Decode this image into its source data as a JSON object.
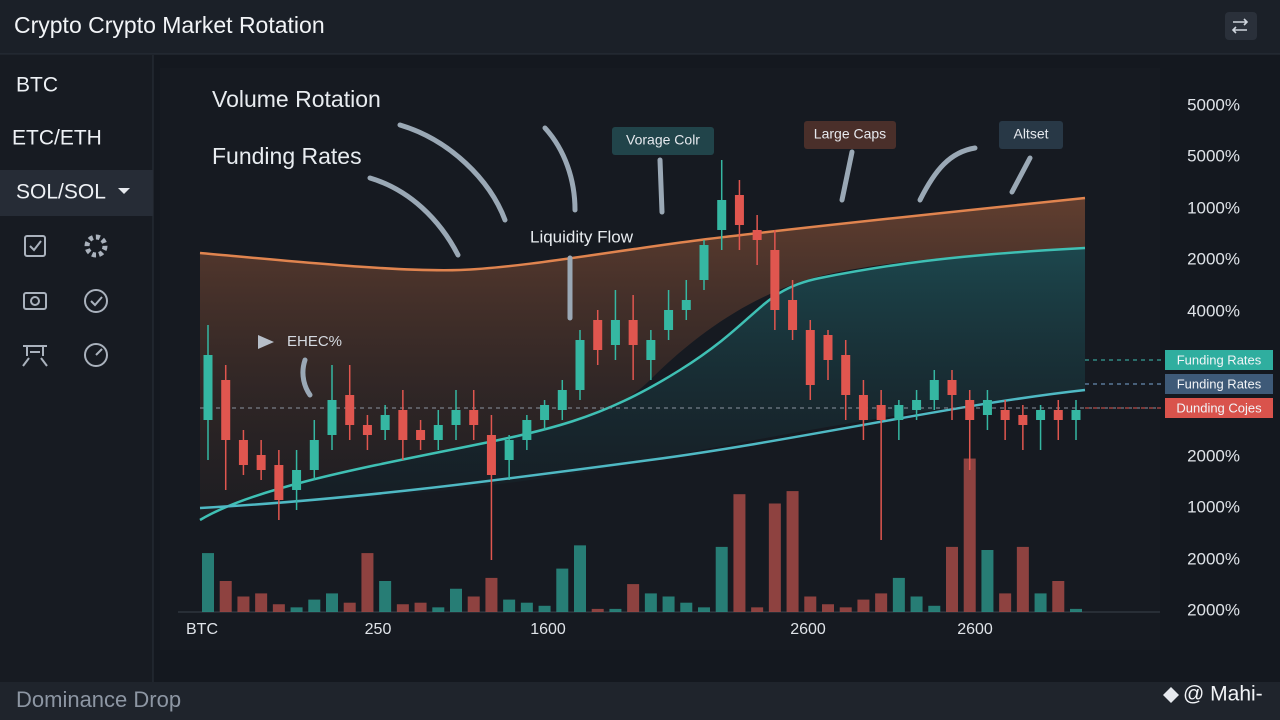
{
  "header": {
    "title": "Crypto Crypto Market Rotation"
  },
  "sidebar": {
    "items": [
      "BTC",
      "ETC/ETH",
      "SOL/SOL"
    ]
  },
  "chart": {
    "annotations": [
      "Volume Rotation",
      "Funding Rates",
      "Liquidity Flow",
      "EHEC%"
    ],
    "callouts": [
      "Vorage Colr",
      "Large Caps",
      "Altset"
    ],
    "legend": [
      "Funding Rates",
      "Funding Rates",
      "Dunding Cojes"
    ],
    "y_labels": [
      "5000%",
      "5000%",
      "1000%",
      "2000%",
      "4000%",
      "2000%",
      "1000%",
      "2000%",
      "2000%"
    ],
    "x_labels": [
      "BTC",
      "250",
      "1600",
      "2600",
      "2600"
    ],
    "candles": [
      [
        44,
        63,
        36,
        57
      ],
      [
        52,
        55,
        30,
        40
      ],
      [
        40,
        42,
        33,
        35
      ],
      [
        37,
        40,
        32,
        34
      ],
      [
        35,
        38,
        24,
        28
      ],
      [
        30,
        38,
        26,
        34
      ],
      [
        34,
        44,
        32,
        40
      ],
      [
        41,
        55,
        38,
        48
      ],
      [
        49,
        55,
        40,
        43
      ],
      [
        43,
        45,
        38,
        41
      ],
      [
        42,
        47,
        40,
        45
      ],
      [
        46,
        50,
        36,
        40
      ],
      [
        42,
        44,
        38,
        40
      ],
      [
        40,
        46,
        38,
        43
      ],
      [
        43,
        50,
        40,
        46
      ],
      [
        46,
        50,
        40,
        43
      ],
      [
        41,
        45,
        16,
        33
      ],
      [
        36,
        41,
        32,
        40
      ],
      [
        40,
        45,
        38,
        44
      ],
      [
        44,
        48,
        42,
        47
      ],
      [
        46,
        52,
        44,
        50
      ],
      [
        50,
        62,
        48,
        60
      ],
      [
        64,
        66,
        55,
        58
      ],
      [
        59,
        70,
        56,
        64
      ],
      [
        64,
        69,
        52,
        59
      ],
      [
        56,
        62,
        52,
        60
      ],
      [
        62,
        70,
        60,
        66
      ],
      [
        66,
        72,
        64,
        68
      ],
      [
        72,
        80,
        70,
        79
      ],
      [
        82,
        96,
        78,
        88
      ],
      [
        89,
        92,
        78,
        83
      ],
      [
        82,
        85,
        75,
        80
      ],
      [
        78,
        82,
        62,
        66
      ],
      [
        68,
        72,
        60,
        62
      ],
      [
        62,
        64,
        48,
        51
      ],
      [
        61,
        62,
        52,
        56
      ],
      [
        57,
        60,
        44,
        49
      ],
      [
        49,
        52,
        40,
        44
      ],
      [
        47,
        50,
        20,
        44
      ],
      [
        44,
        48,
        40,
        47
      ],
      [
        46,
        50,
        44,
        48
      ],
      [
        48,
        54,
        46,
        52
      ],
      [
        52,
        54,
        44,
        49
      ],
      [
        48,
        50,
        34,
        44
      ],
      [
        45,
        50,
        42,
        48
      ],
      [
        46,
        48,
        40,
        44
      ],
      [
        45,
        47,
        38,
        43
      ],
      [
        44,
        47,
        38,
        46
      ],
      [
        46,
        48,
        40,
        44
      ],
      [
        44,
        48,
        40,
        46
      ]
    ],
    "volume": [
      38,
      20,
      10,
      12,
      5,
      3,
      8,
      12,
      6,
      38,
      20,
      5,
      6,
      3,
      15,
      10,
      22,
      8,
      6,
      4,
      28,
      43,
      2,
      2,
      18,
      12,
      10,
      6,
      3,
      42,
      76,
      3,
      70,
      78,
      10,
      5,
      3,
      8,
      12,
      22,
      10,
      4,
      42,
      99,
      40,
      12,
      42,
      12,
      20,
      2
    ]
  },
  "footer": {
    "status": "Dominance Drop",
    "watermark": "@ Mahi-"
  }
}
